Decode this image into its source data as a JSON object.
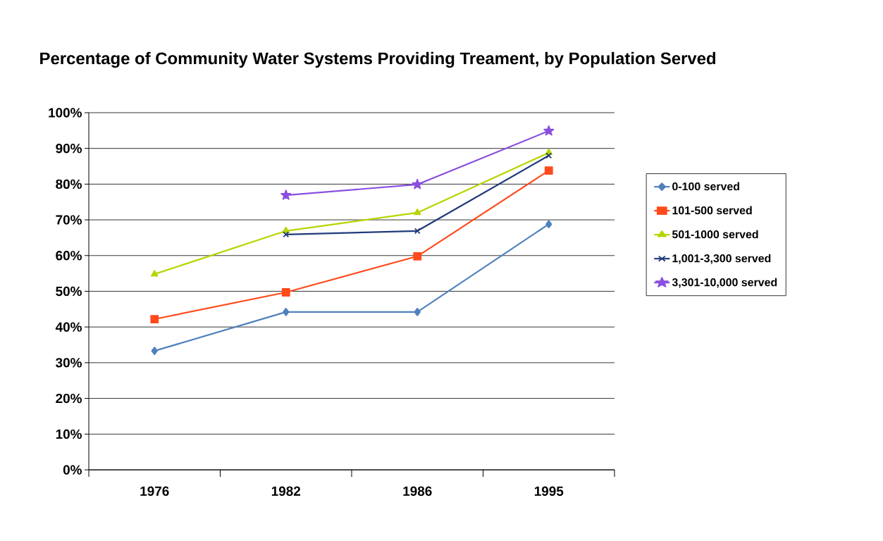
{
  "chart_data": {
    "type": "line",
    "title": "Percentage of Community Water Systems Providing Treament, by Population Served",
    "categories": [
      "1976",
      "1982",
      "1986",
      "1995"
    ],
    "series": [
      {
        "name": "0-100 served",
        "color": "#4f81bd",
        "marker": "diamond",
        "values": [
          33.3,
          44.2,
          44.2,
          68.8
        ]
      },
      {
        "name": "101-500 served",
        "color": "#ff4a1c",
        "marker": "square",
        "values": [
          42.2,
          49.7,
          59.8,
          83.8
        ]
      },
      {
        "name": "501-1000 served",
        "color": "#b8d400",
        "marker": "triangle",
        "values": [
          54.8,
          66.9,
          72,
          88.8
        ]
      },
      {
        "name": "1,001-3,300 served",
        "color": "#1f3a7a",
        "marker": "cross",
        "values": [
          null,
          65.9,
          66.9,
          88
        ]
      },
      {
        "name": "3,301-10,000 served",
        "color": "#8a4fe0",
        "marker": "star",
        "values": [
          null,
          76.9,
          79.9,
          94.9
        ]
      }
    ],
    "ylim": [
      0,
      100
    ],
    "yticks": [
      {
        "value": 0,
        "label": "0%"
      },
      {
        "value": 10,
        "label": "10%"
      },
      {
        "value": 20,
        "label": "20%"
      },
      {
        "value": 30,
        "label": "30%"
      },
      {
        "value": 40,
        "label": "40%"
      },
      {
        "value": 50,
        "label": "50%"
      },
      {
        "value": 60,
        "label": "60%"
      },
      {
        "value": 70,
        "label": "70%"
      },
      {
        "value": 80,
        "label": "80%"
      },
      {
        "value": 90,
        "label": "90%"
      },
      {
        "value": 100,
        "label": "100%"
      }
    ],
    "grid": "y",
    "legend": "right",
    "line_style": "solid"
  }
}
